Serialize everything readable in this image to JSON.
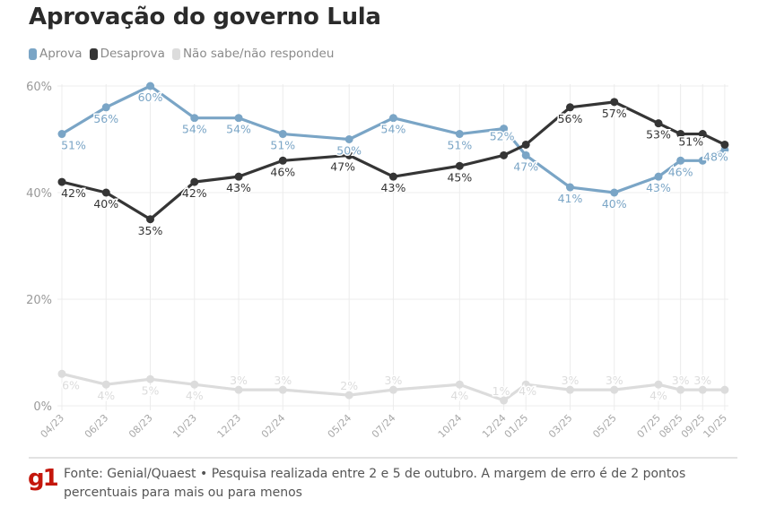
{
  "header": {
    "title": "Aprovação do governo Lula"
  },
  "footer": {
    "logo": "g1",
    "source": "Fonte: Genial/Quaest • Pesquisa realizada entre 2 e 5 de outubro. A margem de erro é de 2 pontos percentuais para mais ou para menos"
  },
  "chart_data": {
    "type": "line",
    "title": "Aprovação do governo Lula",
    "xlabel": "",
    "ylabel": "",
    "ylim": [
      0,
      60
    ],
    "yticks": [
      "0%",
      "20%",
      "40%",
      "60%"
    ],
    "ytick_values": [
      0,
      20,
      40,
      60
    ],
    "grid": true,
    "legend_position": "top-left",
    "x": [
      "04/23",
      "06/23",
      "08/23",
      "10/23",
      "12/23",
      "02/24",
      "05/24",
      "07/24",
      "10/24",
      "12/24",
      "01/25",
      "03/25",
      "05/25",
      "07/25",
      "08/25",
      "09/25",
      "10/25"
    ],
    "x_month_index": [
      0,
      2,
      4,
      6,
      8,
      10,
      13,
      15,
      18,
      20,
      21,
      23,
      25,
      27,
      28,
      29,
      30
    ],
    "series": [
      {
        "name": "Aprova",
        "color": "#7aa5c6",
        "values": [
          51,
          56,
          60,
          54,
          54,
          51,
          50,
          54,
          51,
          52,
          47,
          41,
          40,
          43,
          46,
          46,
          48
        ],
        "labels": [
          "51%",
          "56%",
          "60%",
          "54%",
          "54%",
          "51%",
          "50%",
          "54%",
          "51%",
          "52%",
          "47%",
          "41%",
          "40%",
          "43%",
          "46%",
          null,
          "48%"
        ]
      },
      {
        "name": "Desaprova",
        "color": "#353535",
        "values": [
          42,
          40,
          35,
          42,
          43,
          46,
          47,
          43,
          45,
          47,
          49,
          56,
          57,
          53,
          51,
          51,
          49
        ],
        "labels": [
          "42%",
          "40%",
          "35%",
          "42%",
          "43%",
          "46%",
          "47%",
          "43%",
          "45%",
          null,
          null,
          "56%",
          "57%",
          "53%",
          null,
          "51%",
          null
        ]
      },
      {
        "name": "Não sabe/não respondeu",
        "color": "#dcdcdc",
        "values": [
          6,
          4,
          5,
          4,
          3,
          3,
          2,
          3,
          4,
          1,
          4,
          3,
          3,
          4,
          3,
          3,
          3
        ],
        "labels": [
          "6%",
          "4%",
          "5%",
          "4%",
          "3%",
          "3%",
          "2%",
          "3%",
          "4%",
          "1%",
          "4%",
          "3%",
          "3%",
          "4%",
          "3%",
          "3%",
          null
        ]
      }
    ]
  }
}
